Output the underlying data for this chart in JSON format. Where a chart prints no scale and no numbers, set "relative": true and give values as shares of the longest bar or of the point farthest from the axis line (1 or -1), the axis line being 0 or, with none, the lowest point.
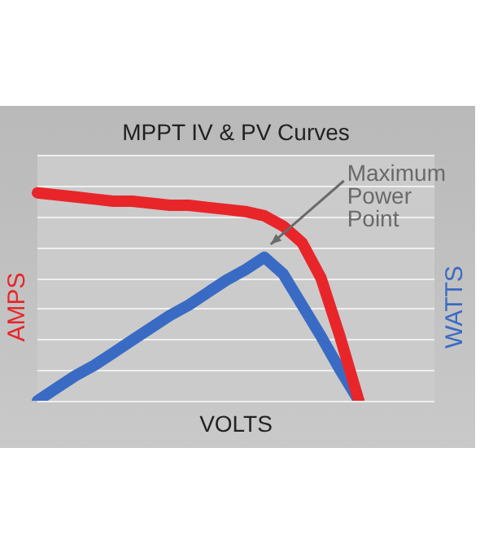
{
  "chart_data": {
    "type": "line",
    "title": "MPPT IV & PV Curves",
    "xlabel": "VOLTS",
    "ylabel": "AMPS",
    "y2label": "WATTS",
    "relative": true,
    "grid": "y",
    "marker": "none",
    "categories": [
      null,
      null,
      null,
      null,
      null,
      null,
      null,
      null,
      null,
      null,
      null,
      null,
      null,
      null,
      null,
      null,
      null,
      null,
      null,
      null,
      null,
      null
    ],
    "series": [
      {
        "color": "#e8262a",
        "values": [
          1.0,
          0.99,
          0.98,
          0.97,
          0.96,
          0.96,
          0.95,
          0.94,
          0.94,
          0.93,
          0.92,
          0.91,
          0.89,
          0.84,
          0.76,
          0.59,
          0.31,
          0,
          null,
          null,
          null,
          null
        ]
      },
      {
        "color": "#3a6bc4",
        "values": [
          0,
          0.06,
          0.12,
          0.17,
          0.23,
          0.29,
          0.35,
          0.41,
          0.46,
          0.52,
          0.58,
          0.63,
          0.69,
          0.61,
          0.46,
          0.31,
          0.15,
          0,
          null,
          null,
          null,
          null
        ]
      }
    ],
    "annotations": [
      "Maximum Power Point"
    ]
  }
}
